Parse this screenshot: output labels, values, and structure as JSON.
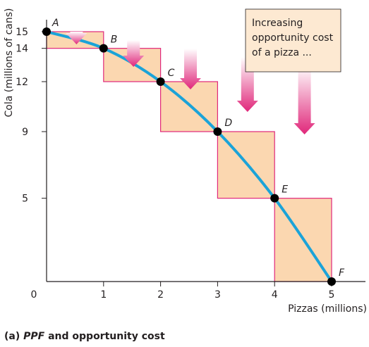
{
  "chart_data": {
    "type": "line",
    "title": "",
    "xlabel": "Pizzas (millions)",
    "ylabel": "Cola (millions of cans)",
    "xlim": [
      0,
      5
    ],
    "ylim": [
      0,
      15
    ],
    "x_ticks": [
      0,
      1,
      2,
      3,
      4,
      5
    ],
    "y_ticks": [
      5,
      9,
      12,
      14,
      15
    ],
    "origin_label": "0",
    "series": [
      {
        "points": [
          {
            "label": "A",
            "x": 0,
            "y": 15
          },
          {
            "label": "B",
            "x": 1,
            "y": 14
          },
          {
            "label": "C",
            "x": 2,
            "y": 12
          },
          {
            "label": "D",
            "x": 3,
            "y": 9
          },
          {
            "label": "E",
            "x": 4,
            "y": 5
          },
          {
            "label": "F",
            "x": 5,
            "y": 0
          }
        ]
      }
    ],
    "opportunity_cost_steps": [
      {
        "from": "A",
        "to": "B",
        "cola_forgone": 1
      },
      {
        "from": "B",
        "to": "C",
        "cola_forgone": 2
      },
      {
        "from": "C",
        "to": "D",
        "cola_forgone": 3
      },
      {
        "from": "D",
        "to": "E",
        "cola_forgone": 4
      },
      {
        "from": "E",
        "to": "F",
        "cola_forgone": 5
      }
    ],
    "annotation": {
      "lines": [
        "Increasing",
        "opportunity cost",
        "of a pizza ..."
      ]
    },
    "grid": false,
    "legend": "none"
  },
  "caption": {
    "prefix": "(a) ",
    "italic": "PPF",
    "suffix": " and opportunity cost"
  },
  "colors": {
    "curve": "#1ba3d8",
    "box_fill": "#fbd7b0",
    "box_stroke": "#e0277a",
    "arrow": "#e0277a",
    "point": "#000000",
    "note_box": "#fde9d2"
  }
}
